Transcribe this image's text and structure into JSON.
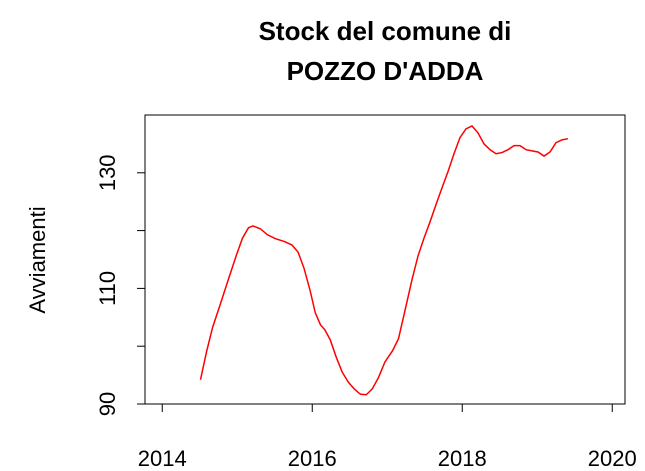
{
  "chart_data": {
    "type": "line",
    "title": [
      "Stock del comune di",
      "POZZO D'ADDA"
    ],
    "ylabel": "Avviamenti",
    "x": [
      2014.51,
      2014.59,
      2014.67,
      2014.77,
      2014.88,
      2014.99,
      2015.07,
      2015.15,
      2015.21,
      2015.31,
      2015.4,
      2015.51,
      2015.63,
      2015.73,
      2015.81,
      2015.89,
      2015.97,
      2016.04,
      2016.11,
      2016.17,
      2016.24,
      2016.32,
      2016.4,
      2016.48,
      2016.56,
      2016.64,
      2016.72,
      2016.8,
      2016.88,
      2016.97,
      2017.07,
      2017.15,
      2017.23,
      2017.33,
      2017.41,
      2017.49,
      2017.57,
      2017.65,
      2017.73,
      2017.81,
      2017.89,
      2017.97,
      2018.05,
      2018.13,
      2018.21,
      2018.29,
      2018.37,
      2018.45,
      2018.53,
      2018.61,
      2018.69,
      2018.77,
      2018.85,
      2018.93,
      2019.01,
      2019.09,
      2019.17,
      2019.25,
      2019.33,
      2019.41
    ],
    "series": [
      {
        "color": "#ff0000",
        "values": [
          94.2,
          99,
          103.2,
          107.1,
          111.5,
          115.8,
          118.7,
          120.5,
          120.8,
          120.3,
          119.3,
          118.6,
          118.1,
          117.5,
          116.3,
          113.5,
          109.7,
          105.8,
          103.7,
          102.8,
          101.1,
          98.1,
          95.5,
          93.8,
          92.6,
          91.7,
          91.6,
          92.6,
          94.5,
          97.3,
          99.2,
          101.3,
          105.8,
          111.5,
          115.6,
          118.7,
          121.5,
          124.5,
          127.4,
          130.2,
          133.3,
          136.1,
          137.6,
          138.1,
          136.9,
          135,
          134,
          133.3,
          133.5,
          134,
          134.7,
          134.7,
          134,
          133.8,
          133.6,
          132.9,
          133.6,
          135.2,
          135.7,
          135.9
        ]
      }
    ],
    "xlim": [
      2013.77,
      2020.17
    ],
    "xticks": [
      2014,
      2016,
      2018,
      2020
    ],
    "ylim": [
      90,
      140
    ],
    "yticks": [
      90,
      110,
      130
    ],
    "yminorticks": [
      100,
      120
    ]
  }
}
